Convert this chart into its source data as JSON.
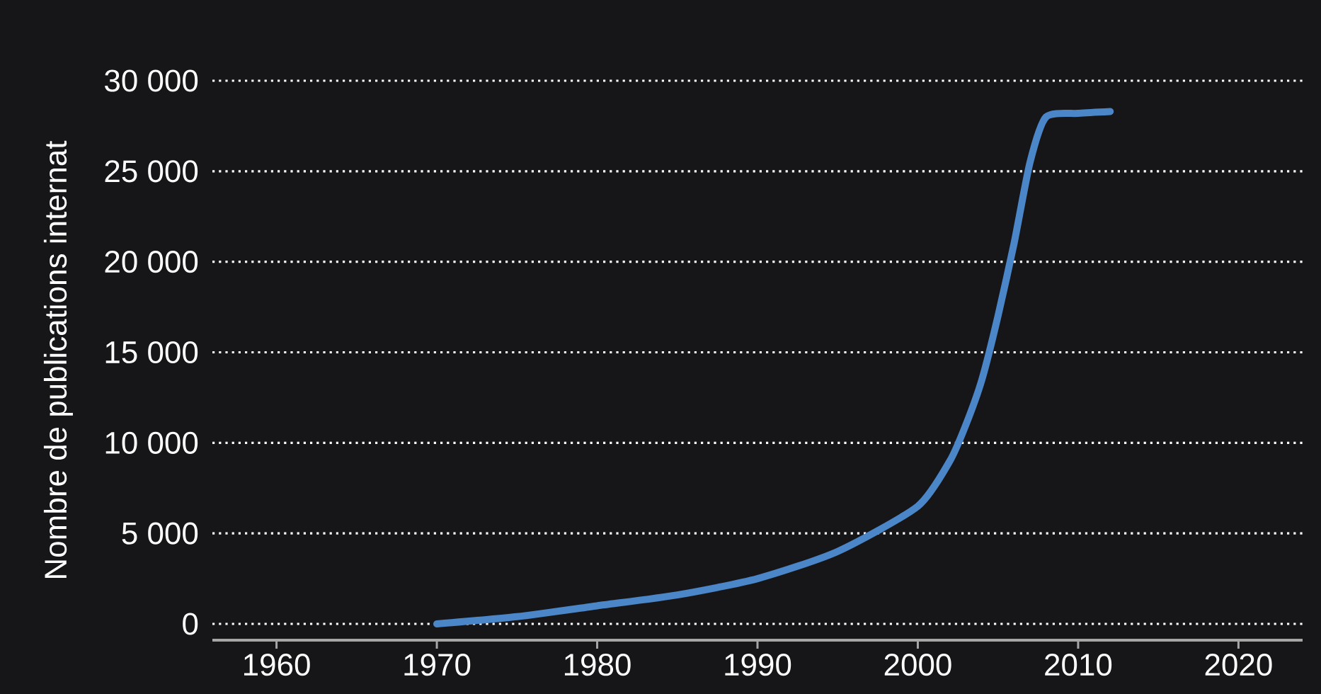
{
  "chart_data": {
    "type": "line",
    "ylabel": "Nombre de publications internat",
    "series": [
      {
        "color": "#4a86c8",
        "x": [
          1970,
          1975,
          1980,
          1985,
          1990,
          1995,
          2000,
          2002,
          2003,
          2004,
          2005,
          2006,
          2007,
          2008,
          2010,
          2012
        ],
        "values": [
          0,
          400,
          1000,
          1600,
          2500,
          4000,
          6500,
          9000,
          11000,
          13500,
          17000,
          21000,
          25500,
          28000,
          28200,
          28300
        ]
      }
    ],
    "xlim": [
      1956,
      2024
    ],
    "ylim": [
      -900,
      30000
    ],
    "xticks": [
      1960,
      1970,
      1980,
      1990,
      2000,
      2010,
      2020
    ],
    "yticks": [
      {
        "value": 0,
        "label": "0"
      },
      {
        "value": 5000,
        "label": "5 000"
      },
      {
        "value": 10000,
        "label": "10 000"
      },
      {
        "value": 15000,
        "label": "15 000"
      },
      {
        "value": 20000,
        "label": "20 000"
      },
      {
        "value": 25000,
        "label": "25 000"
      },
      {
        "value": 30000,
        "label": "30 000"
      }
    ],
    "grid": "y",
    "line_style": "solid"
  }
}
